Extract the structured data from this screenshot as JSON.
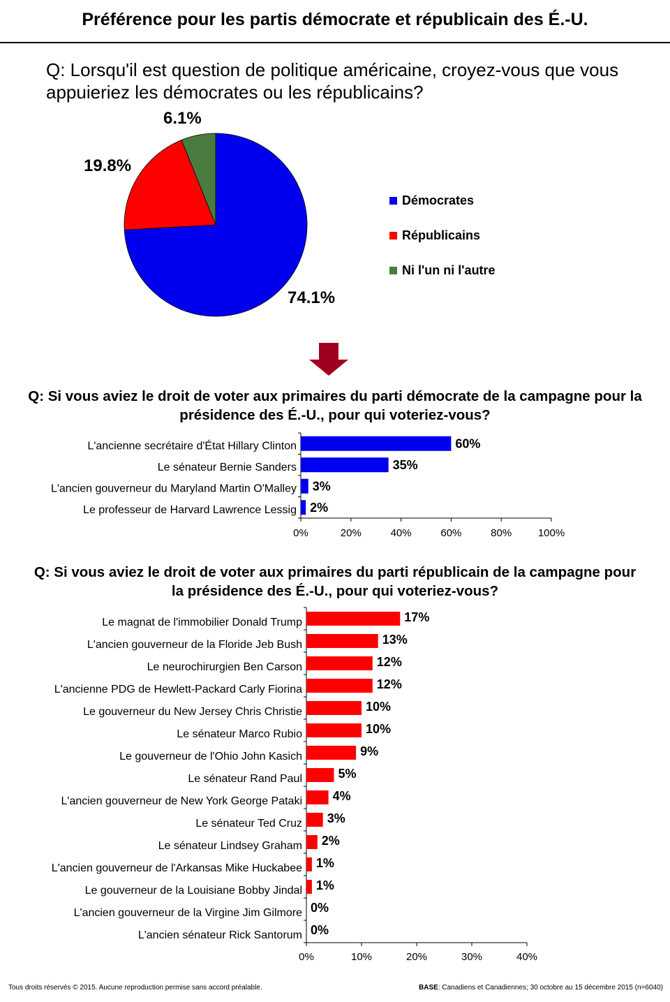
{
  "title": "Préférence pour les partis démocrate et républicain des É.-U.",
  "chart_data": [
    {
      "type": "pie",
      "title": "Q: Lorsqu'il est question de politique américaine, croyez-vous que vous appuieriez les démocrates ou les républicains?",
      "slices": [
        {
          "name": "Démocrates",
          "value": 74.1,
          "label": "74.1%",
          "color": "#0000ee"
        },
        {
          "name": "Républicains",
          "value": 19.8,
          "label": "19.8%",
          "color": "#ff0000"
        },
        {
          "name": "Ni l'un ni l'autre",
          "value": 6.1,
          "label": "6.1%",
          "color": "#4a7c3f"
        }
      ]
    },
    {
      "type": "bar",
      "orientation": "horizontal",
      "title": "Q: Si vous aviez le droit de voter aux primaires du parti démocrate de la campagne pour la présidence des É.-U., pour qui voteriez-vous?",
      "color": "#0000ee",
      "categories": [
        "L'ancienne secrétaire d'État Hillary Clinton",
        "Le sénateur Bernie Sanders",
        "L'ancien gouverneur du Maryland Martin O'Malley",
        "Le professeur de Harvard Lawrence Lessig"
      ],
      "values": [
        60,
        35,
        3,
        2
      ],
      "value_labels": [
        "60%",
        "35%",
        "3%",
        "2%"
      ],
      "xlim": [
        0,
        100
      ],
      "ticks": [
        0,
        20,
        40,
        60,
        80,
        100
      ],
      "tick_labels": [
        "0%",
        "20%",
        "40%",
        "60%",
        "80%",
        "100%"
      ]
    },
    {
      "type": "bar",
      "orientation": "horizontal",
      "title": "Q: Si vous aviez le droit de voter aux primaires du parti républicain de la campagne pour la présidence des É.-U., pour qui voteriez-vous?",
      "color": "#ff0000",
      "categories": [
        "Le magnat de l'immobilier Donald Trump",
        "L'ancien gouverneur de la Floride Jeb Bush",
        "Le neurochirurgien Ben Carson",
        "L'ancienne PDG de Hewlett-Packard Carly Fiorina",
        "Le gouverneur du New Jersey Chris Christie",
        "Le sénateur Marco Rubio",
        "Le gouverneur de l'Ohio John Kasich",
        "Le sénateur Rand Paul",
        "L'ancien gouverneur de New York George Pataki",
        "Le sénateur Ted Cruz",
        "Le sénateur Lindsey Graham",
        "L'ancien gouverneur de l'Arkansas Mike Huckabee",
        "Le gouverneur de la Louisiane Bobby Jindal",
        "L'ancien gouverneur de la Virgine Jim Gilmore",
        "L'ancien sénateur Rick Santorum"
      ],
      "values": [
        17,
        13,
        12,
        12,
        10,
        10,
        9,
        5,
        4,
        3,
        2,
        1,
        1,
        0,
        0
      ],
      "value_labels": [
        "17%",
        "13%",
        "12%",
        "12%",
        "10%",
        "10%",
        "9%",
        "5%",
        "4%",
        "3%",
        "2%",
        "1%",
        "1%",
        "0%",
        "0%"
      ],
      "xlim": [
        0,
        40
      ],
      "ticks": [
        0,
        10,
        20,
        30,
        40
      ],
      "tick_labels": [
        "0%",
        "10%",
        "20%",
        "30%",
        "40%"
      ]
    }
  ],
  "footer": {
    "left": "Tous droits réservés © 2015. Aucune reproduction permise sans accord préalable.",
    "base_label": "BASE",
    "right": ": Canadiens et Canadiennes; 30 octobre au 15 décembre 2015 (n=6040)"
  }
}
